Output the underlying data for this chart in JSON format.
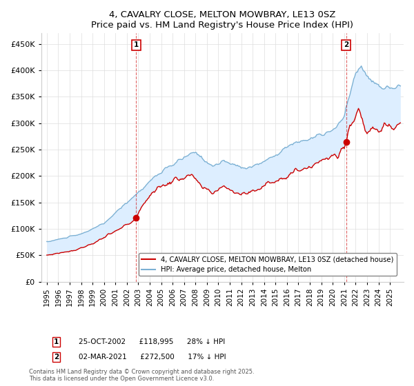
{
  "title": "4, CAVALRY CLOSE, MELTON MOWBRAY, LE13 0SZ",
  "subtitle": "Price paid vs. HM Land Registry's House Price Index (HPI)",
  "hpi_color": "#7ab0d4",
  "price_color": "#cc0000",
  "fill_color": "#ddeeff",
  "transaction1": {
    "date": "25-OCT-2002",
    "price": 118995,
    "hpi_diff": "28% ↓ HPI",
    "label": "1",
    "x_year": 2002.81
  },
  "transaction2": {
    "date": "02-MAR-2021",
    "price": 272500,
    "hpi_diff": "17% ↓ HPI",
    "label": "2",
    "x_year": 2021.17
  },
  "ylim": [
    0,
    470000
  ],
  "yticks": [
    0,
    50000,
    100000,
    150000,
    200000,
    250000,
    300000,
    350000,
    400000,
    450000
  ],
  "ytick_labels": [
    "£0",
    "£50K",
    "£100K",
    "£150K",
    "£200K",
    "£250K",
    "£300K",
    "£350K",
    "£400K",
    "£450K"
  ],
  "xlim_start": 1994.5,
  "xlim_end": 2026.2,
  "legend_line1": "4, CAVALRY CLOSE, MELTON MOWBRAY, LE13 0SZ (detached house)",
  "legend_line2": "HPI: Average price, detached house, Melton",
  "footer": "Contains HM Land Registry data © Crown copyright and database right 2025.\nThis data is licensed under the Open Government Licence v3.0.",
  "background_color": "#ffffff",
  "grid_color": "#dddddd"
}
